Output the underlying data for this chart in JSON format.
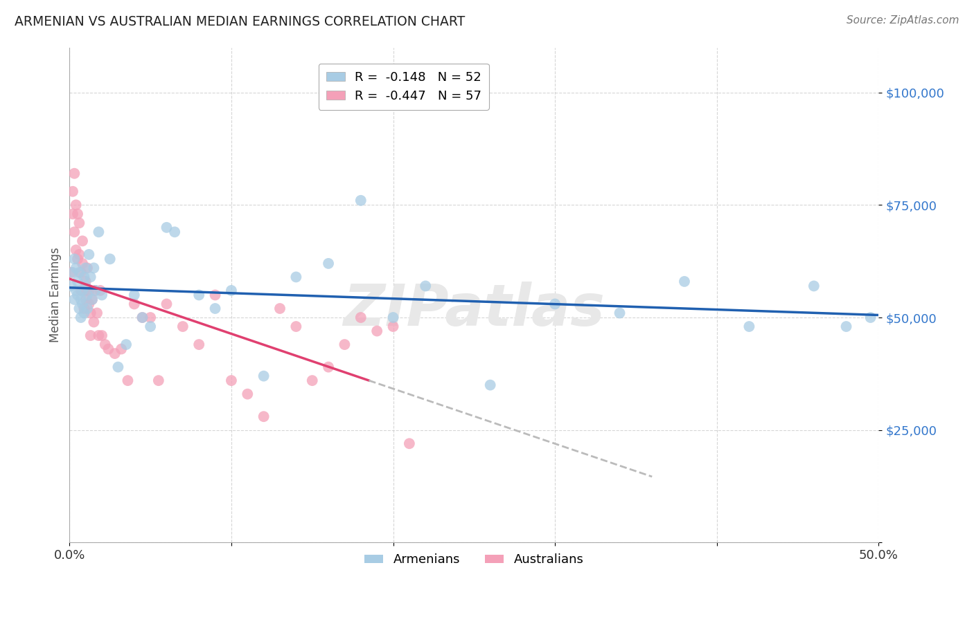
{
  "title": "ARMENIAN VS AUSTRALIAN MEDIAN EARNINGS CORRELATION CHART",
  "source": "Source: ZipAtlas.com",
  "ylabel": "Median Earnings",
  "xlim": [
    0.0,
    0.5
  ],
  "ylim": [
    0,
    110000
  ],
  "yticks": [
    0,
    25000,
    50000,
    75000,
    100000
  ],
  "ytick_labels": [
    "",
    "$25,000",
    "$50,000",
    "$75,000",
    "$100,000"
  ],
  "xticks": [
    0.0,
    0.1,
    0.2,
    0.3,
    0.4,
    0.5
  ],
  "xtick_labels": [
    "0.0%",
    "",
    "",
    "",
    "",
    "50.0%"
  ],
  "legend_r_armenian": "R =  -0.148",
  "legend_n_armenian": "N = 52",
  "legend_r_australian": "R =  -0.447",
  "legend_n_australian": "N = 57",
  "color_armenian": "#a8cce4",
  "color_australian": "#f4a0b8",
  "line_color_armenian": "#2060b0",
  "line_color_australian": "#e04070",
  "watermark": "ZIPatlas",
  "armenian_x": [
    0.001,
    0.002,
    0.003,
    0.003,
    0.004,
    0.004,
    0.005,
    0.005,
    0.006,
    0.006,
    0.007,
    0.007,
    0.008,
    0.008,
    0.009,
    0.009,
    0.01,
    0.01,
    0.011,
    0.011,
    0.012,
    0.013,
    0.014,
    0.015,
    0.016,
    0.018,
    0.02,
    0.025,
    0.03,
    0.035,
    0.04,
    0.045,
    0.05,
    0.06,
    0.065,
    0.08,
    0.09,
    0.1,
    0.12,
    0.14,
    0.16,
    0.18,
    0.2,
    0.22,
    0.26,
    0.3,
    0.34,
    0.38,
    0.42,
    0.46,
    0.48,
    0.495
  ],
  "armenian_y": [
    57000,
    60000,
    54000,
    63000,
    56000,
    61000,
    55000,
    58000,
    52000,
    60000,
    54000,
    50000,
    56000,
    53000,
    59000,
    51000,
    57000,
    61000,
    55000,
    52000,
    64000,
    59000,
    54000,
    61000,
    56000,
    69000,
    55000,
    63000,
    39000,
    44000,
    55000,
    50000,
    48000,
    70000,
    69000,
    55000,
    52000,
    56000,
    37000,
    59000,
    62000,
    76000,
    50000,
    57000,
    35000,
    53000,
    51000,
    58000,
    48000,
    57000,
    48000,
    50000
  ],
  "australian_x": [
    0.001,
    0.002,
    0.002,
    0.003,
    0.003,
    0.004,
    0.004,
    0.005,
    0.005,
    0.006,
    0.006,
    0.007,
    0.007,
    0.008,
    0.008,
    0.009,
    0.009,
    0.01,
    0.01,
    0.011,
    0.011,
    0.012,
    0.012,
    0.013,
    0.013,
    0.014,
    0.015,
    0.016,
    0.017,
    0.018,
    0.019,
    0.02,
    0.022,
    0.024,
    0.028,
    0.032,
    0.036,
    0.04,
    0.045,
    0.05,
    0.055,
    0.06,
    0.07,
    0.08,
    0.09,
    0.1,
    0.11,
    0.12,
    0.13,
    0.14,
    0.15,
    0.16,
    0.17,
    0.18,
    0.19,
    0.2,
    0.21
  ],
  "australian_y": [
    60000,
    73000,
    78000,
    82000,
    69000,
    75000,
    65000,
    73000,
    63000,
    71000,
    64000,
    60000,
    56000,
    62000,
    67000,
    56000,
    52000,
    58000,
    54000,
    56000,
    61000,
    53000,
    56000,
    51000,
    46000,
    54000,
    49000,
    56000,
    51000,
    46000,
    56000,
    46000,
    44000,
    43000,
    42000,
    43000,
    36000,
    53000,
    50000,
    50000,
    36000,
    53000,
    48000,
    44000,
    55000,
    36000,
    33000,
    28000,
    52000,
    48000,
    36000,
    39000,
    44000,
    50000,
    47000,
    48000,
    22000
  ],
  "aus_line_x_start": 0.0,
  "aus_line_x_solid_end": 0.185,
  "aus_line_x_dash_end": 0.36,
  "arm_line_x_start": 0.0,
  "arm_line_x_end": 0.5
}
